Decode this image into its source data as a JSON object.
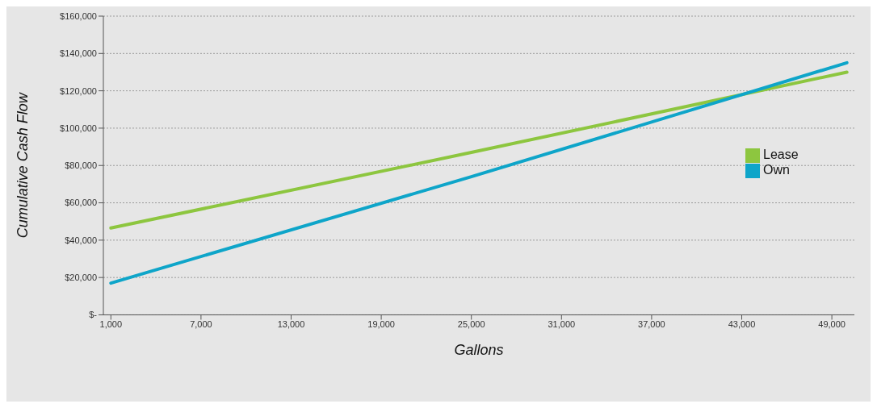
{
  "chart_data": {
    "type": "line",
    "xlabel": "Gallons",
    "ylabel": "Cumulative Cash Flow",
    "xlim": [
      500,
      50500
    ],
    "xticks": [
      {
        "value": 1000,
        "label": "1,000"
      },
      {
        "value": 7000,
        "label": "7,000"
      },
      {
        "value": 13000,
        "label": "13,000"
      },
      {
        "value": 19000,
        "label": "19,000"
      },
      {
        "value": 25000,
        "label": "25,000"
      },
      {
        "value": 31000,
        "label": "31,000"
      },
      {
        "value": 37000,
        "label": "37,000"
      },
      {
        "value": 43000,
        "label": "43,000"
      },
      {
        "value": 49000,
        "label": "49,000"
      }
    ],
    "ylim": [
      0,
      160000
    ],
    "yticks": [
      {
        "value": 0,
        "label": "$-"
      },
      {
        "value": 20000,
        "label": "$20,000"
      },
      {
        "value": 40000,
        "label": "$40,000"
      },
      {
        "value": 60000,
        "label": "$60,000"
      },
      {
        "value": 80000,
        "label": "$80,000"
      },
      {
        "value": 100000,
        "label": "$100,000"
      },
      {
        "value": 120000,
        "label": "$120,000"
      },
      {
        "value": 140000,
        "label": "$140,000"
      },
      {
        "value": 160000,
        "label": "$160,000"
      }
    ],
    "x": [
      1000,
      25000,
      50000
    ],
    "series": [
      {
        "name": "Lease",
        "color": "#8dc63f",
        "values": [
          46500,
          87000,
          130000
        ]
      },
      {
        "name": "Own",
        "color": "#0ea5c9",
        "values": [
          17000,
          74000,
          135000
        ]
      }
    ],
    "grid": "y",
    "legend": "right",
    "marker": "none",
    "line_style": "solid"
  }
}
